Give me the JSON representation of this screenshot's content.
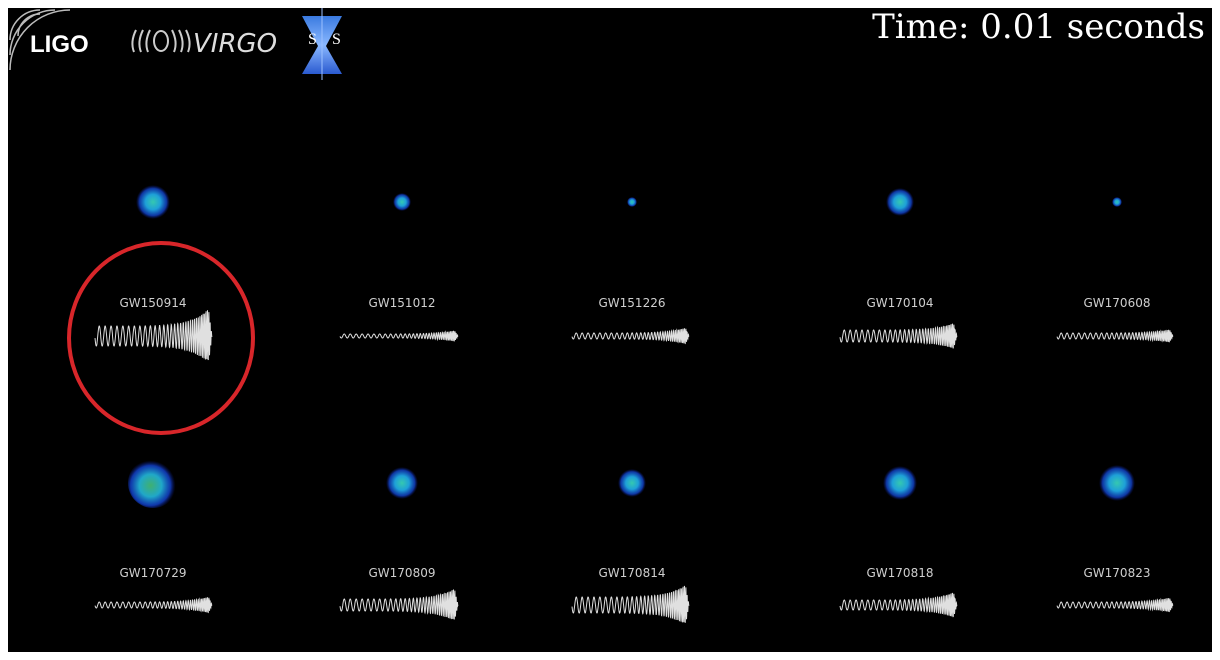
{
  "logos": {
    "ligo": "LIGO",
    "virgo": "VIRGO",
    "sxs": [
      "S",
      "S"
    ]
  },
  "time_label": "Time: 0.01 seconds",
  "events": [
    "GW150914",
    "GW151012",
    "GW151226",
    "GW170104",
    "GW170608",
    "GW170729",
    "GW170809",
    "GW170814",
    "GW170818",
    "GW170823"
  ]
}
